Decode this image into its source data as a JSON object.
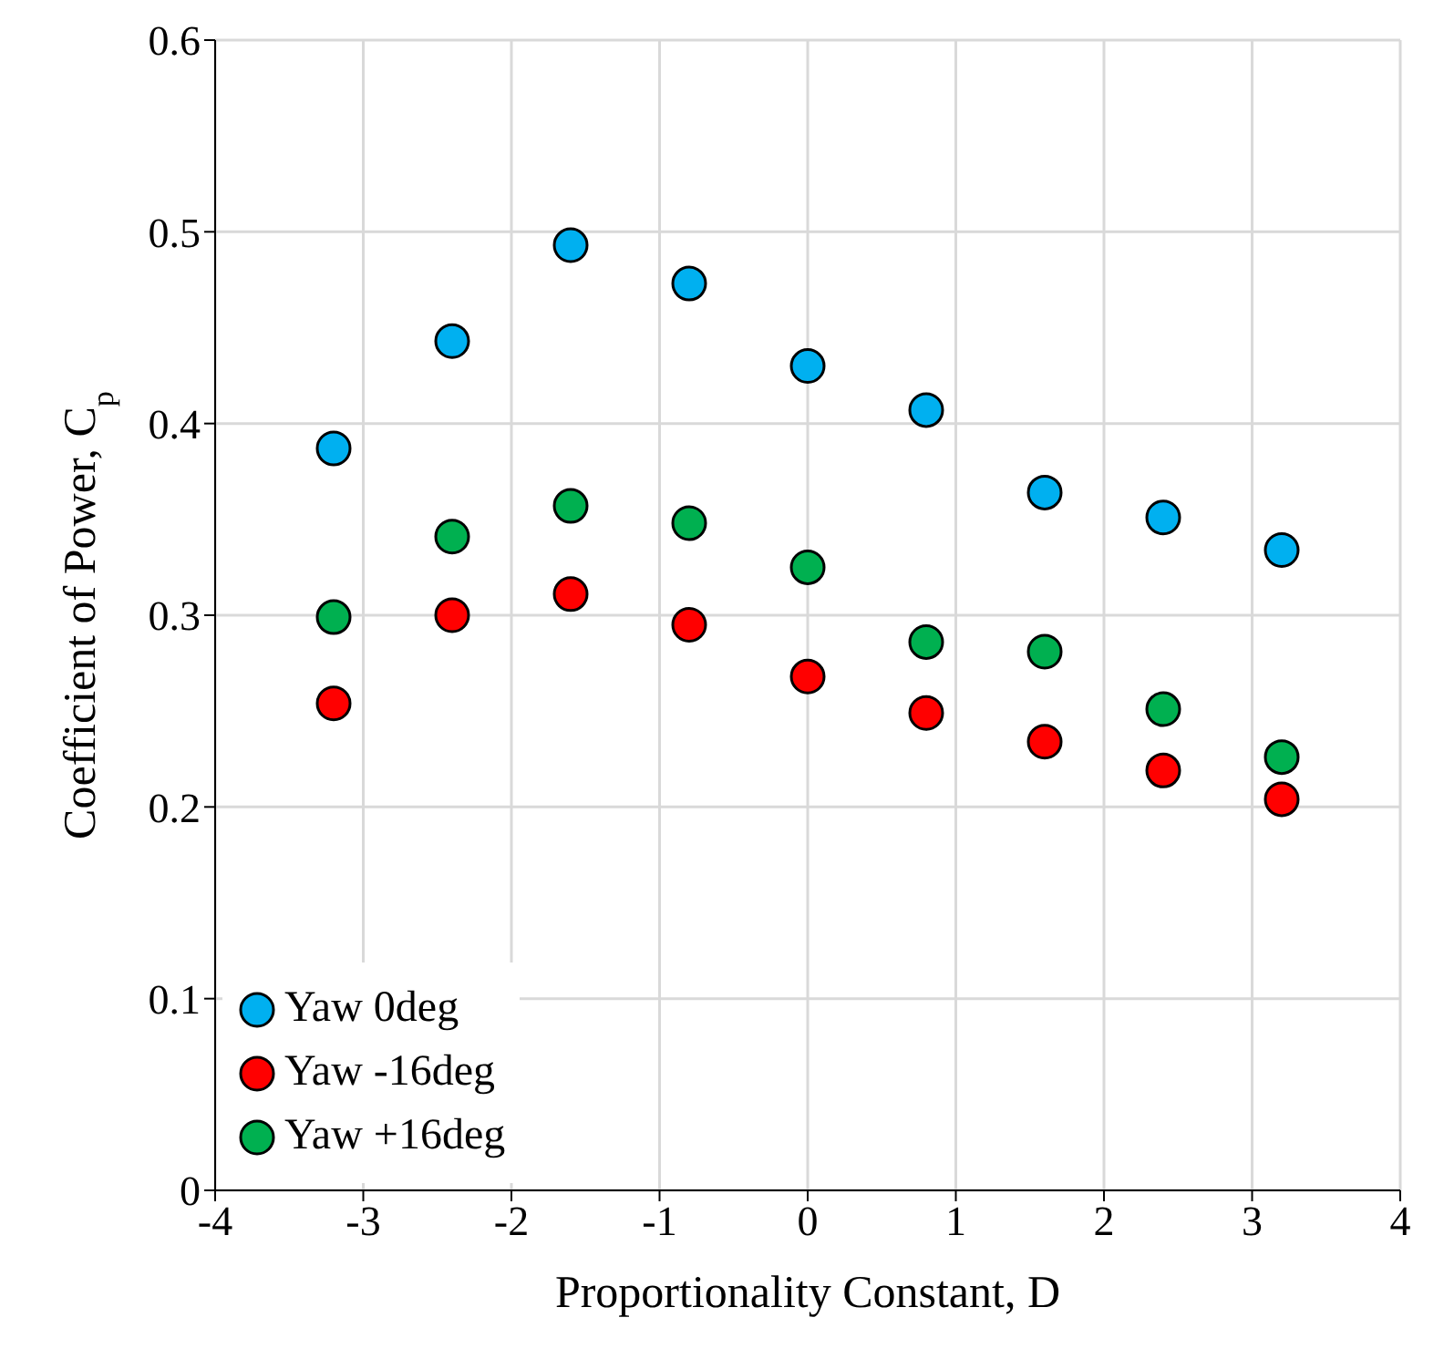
{
  "chart_data": {
    "type": "scatter",
    "xlabel": "Proportionality Constant, D",
    "ylabel": "Coefficient of Power, C$_{p}$",
    "x": [
      -3.2,
      -2.4,
      -1.6,
      -0.8,
      0,
      0.8,
      1.6,
      2.4,
      3.2
    ],
    "xlim": [
      -4,
      4
    ],
    "xticks": [
      -4,
      -3,
      -2,
      -1,
      0,
      1,
      2,
      3,
      4
    ],
    "ylim": [
      0,
      0.6
    ],
    "yticks": [
      0,
      0.1,
      0.2,
      0.3,
      0.4,
      0.5,
      0.6
    ],
    "grid": true,
    "legend": "bottom left",
    "marker": "circle",
    "series": [
      {
        "name": "Yaw 0deg",
        "color": "#00b0f0",
        "values": [
          0.387,
          0.443,
          0.493,
          0.473,
          0.43,
          0.407,
          0.364,
          0.351,
          0.334
        ]
      },
      {
        "name": "Yaw -16deg",
        "color": "#ff0000",
        "values": [
          0.254,
          0.3,
          0.311,
          0.295,
          0.268,
          0.249,
          0.234,
          0.219,
          0.204
        ]
      },
      {
        "name": "Yaw +16deg",
        "color": "#00b050",
        "values": [
          0.299,
          0.341,
          0.357,
          0.348,
          0.325,
          0.286,
          0.281,
          0.251,
          0.226
        ]
      }
    ]
  }
}
